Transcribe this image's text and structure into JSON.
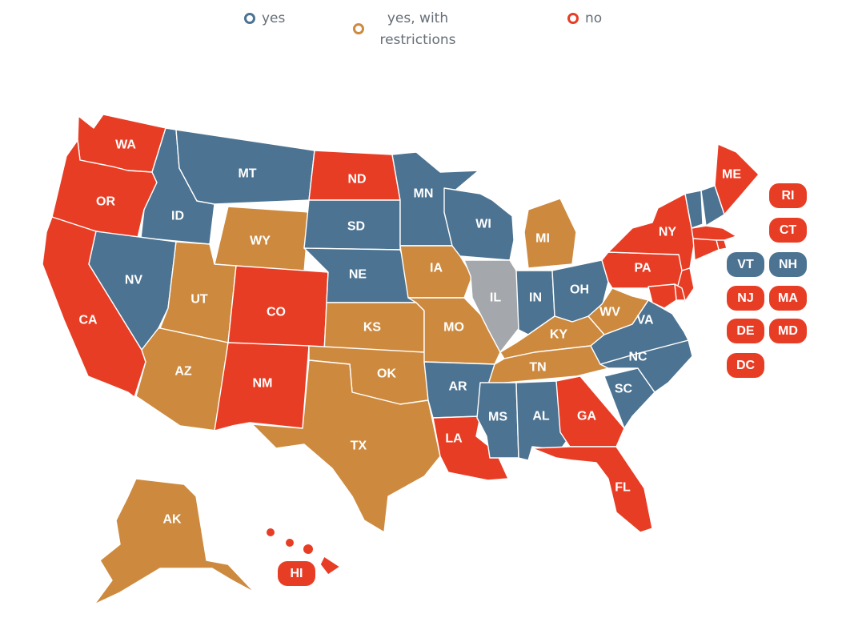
{
  "legend": {
    "yes": "yes",
    "restr_line1": "yes, with",
    "restr_line2": "restrictions",
    "no": "no"
  },
  "colors": {
    "yes": "#4c7391",
    "restricted": "#cd8a3f",
    "no": "#e83d25",
    "no_data": "#a4a7ab"
  },
  "states": {
    "WA": "no",
    "OR": "no",
    "CA": "no",
    "ID": "yes",
    "NV": "yes",
    "MT": "yes",
    "WY": "restricted",
    "UT": "restricted",
    "AZ": "restricted",
    "CO": "no",
    "NM": "no",
    "ND": "no",
    "SD": "yes",
    "NE": "yes",
    "KS": "restricted",
    "OK": "restricted",
    "TX": "restricted",
    "MN": "yes",
    "IA": "restricted",
    "MO": "restricted",
    "AR": "yes",
    "LA": "no",
    "WI": "yes",
    "IL": "no_data",
    "MI": "restricted",
    "IN": "yes",
    "OH": "yes",
    "KY": "restricted",
    "TN": "restricted",
    "MS": "yes",
    "AL": "yes",
    "GA": "no",
    "FL": "no",
    "SC": "yes",
    "NC": "yes",
    "VA": "yes",
    "WV": "restricted",
    "PA": "no",
    "NY": "no",
    "ME": "no",
    "VT": "yes",
    "NH": "yes",
    "MA": "no",
    "RI": "no",
    "CT": "no",
    "NJ": "no",
    "DE": "no",
    "MD": "no",
    "DC": "no",
    "AK": "restricted",
    "HI": "no"
  }
}
